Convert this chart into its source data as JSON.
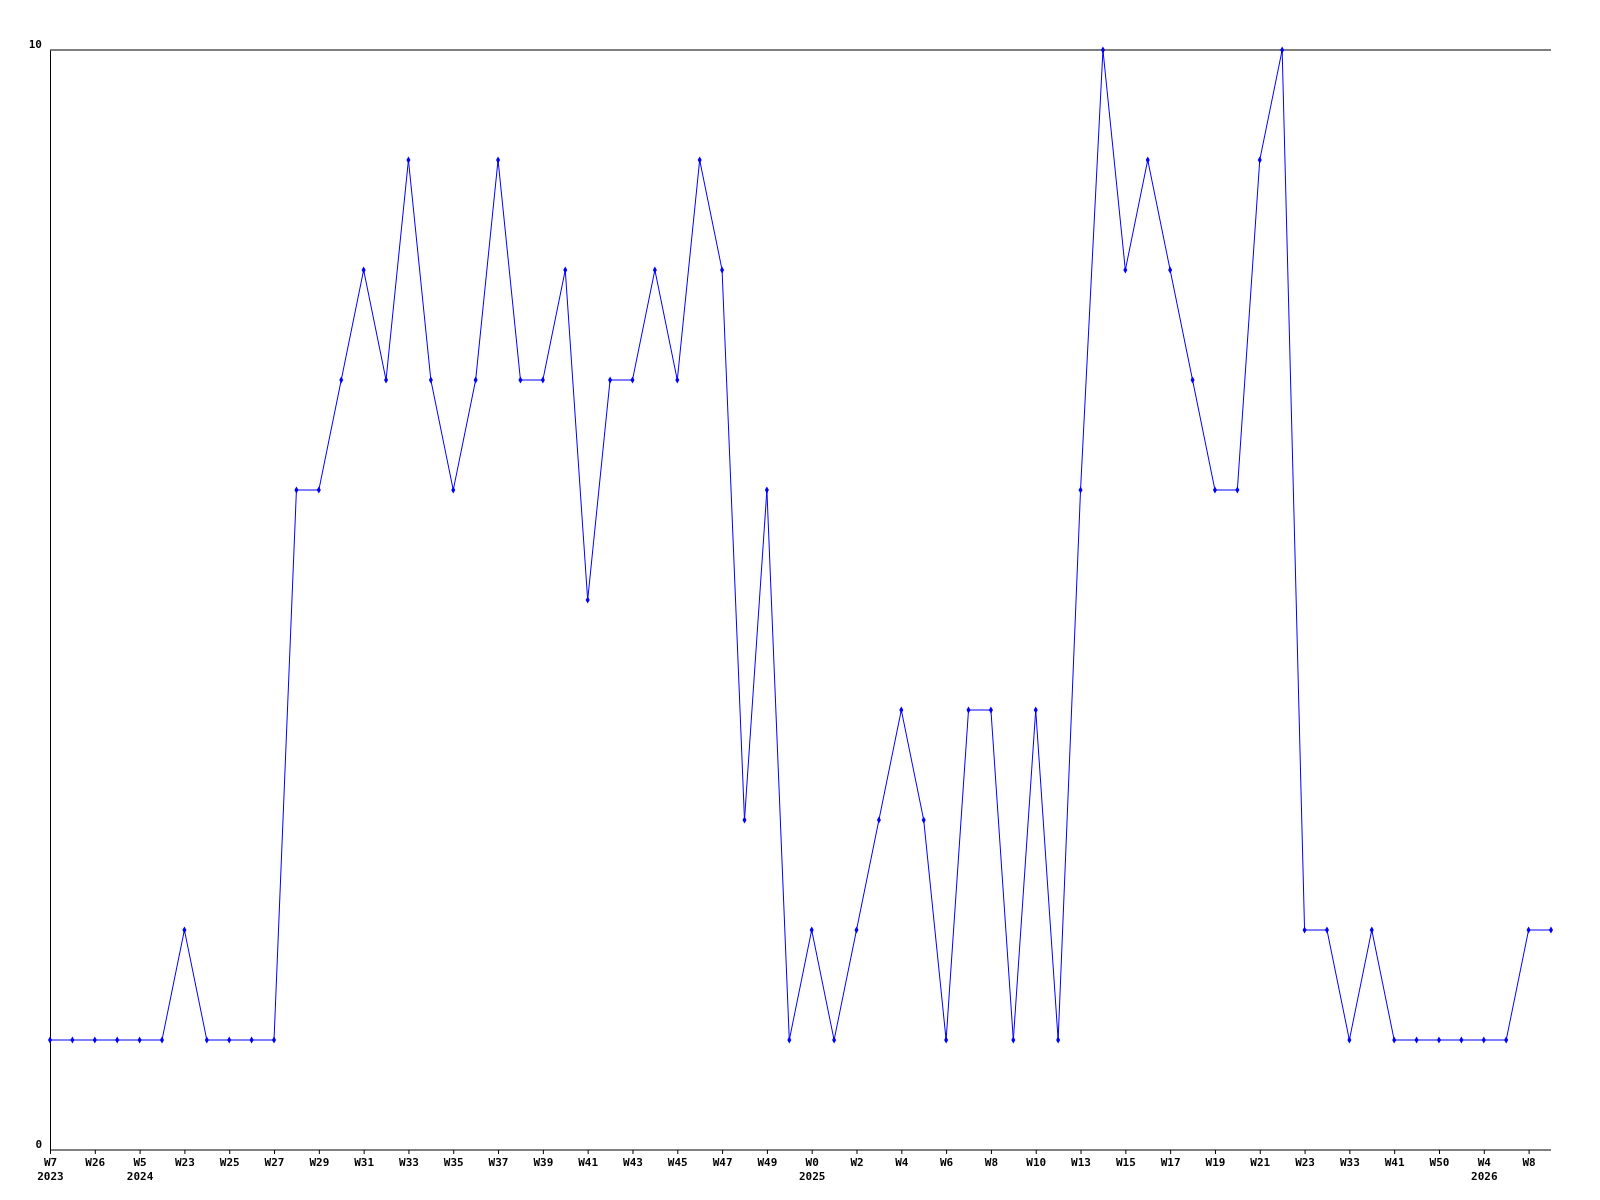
{
  "chart_data": {
    "type": "line",
    "categories": [
      "W7\n2023",
      null,
      "W26",
      null,
      "W5\n2024",
      null,
      "W23",
      null,
      "W25",
      null,
      "W27",
      null,
      "W29",
      null,
      "W31",
      null,
      "W33",
      null,
      "W35",
      null,
      "W37",
      null,
      "W39",
      null,
      "W41",
      null,
      "W43",
      null,
      "W45",
      null,
      "W47",
      null,
      "W49",
      null,
      "W0\n2025",
      null,
      "W2",
      null,
      "W4",
      null,
      "W6",
      null,
      "W8",
      null,
      "W10",
      null,
      "W13",
      null,
      "W15",
      null,
      "W17",
      null,
      "W19",
      null,
      "W21",
      null,
      "W23",
      null,
      "W33",
      null,
      "W41",
      null,
      "W50",
      null,
      "W4\n2026",
      null,
      "W8",
      null
    ],
    "series": [
      {
        "color": "#0000ff",
        "values": [
          1,
          1,
          1,
          1,
          1,
          1,
          2,
          1,
          1,
          1,
          1,
          6,
          6,
          7,
          8,
          7,
          9,
          7,
          6,
          7,
          9,
          7,
          7,
          8,
          5,
          7,
          7,
          8,
          7,
          9,
          8,
          3,
          6,
          1,
          2,
          1,
          2,
          3,
          4,
          3,
          1,
          4,
          4,
          1,
          4,
          1,
          6,
          10,
          8,
          9,
          8,
          7,
          6,
          6,
          9,
          10,
          2,
          2,
          1,
          2,
          1,
          1,
          1,
          1,
          1,
          1,
          2,
          2
        ]
      }
    ],
    "ylim": [
      0,
      10
    ],
    "yticks": [
      0,
      10
    ],
    "marker": "diamond",
    "line_style": "solid"
  }
}
